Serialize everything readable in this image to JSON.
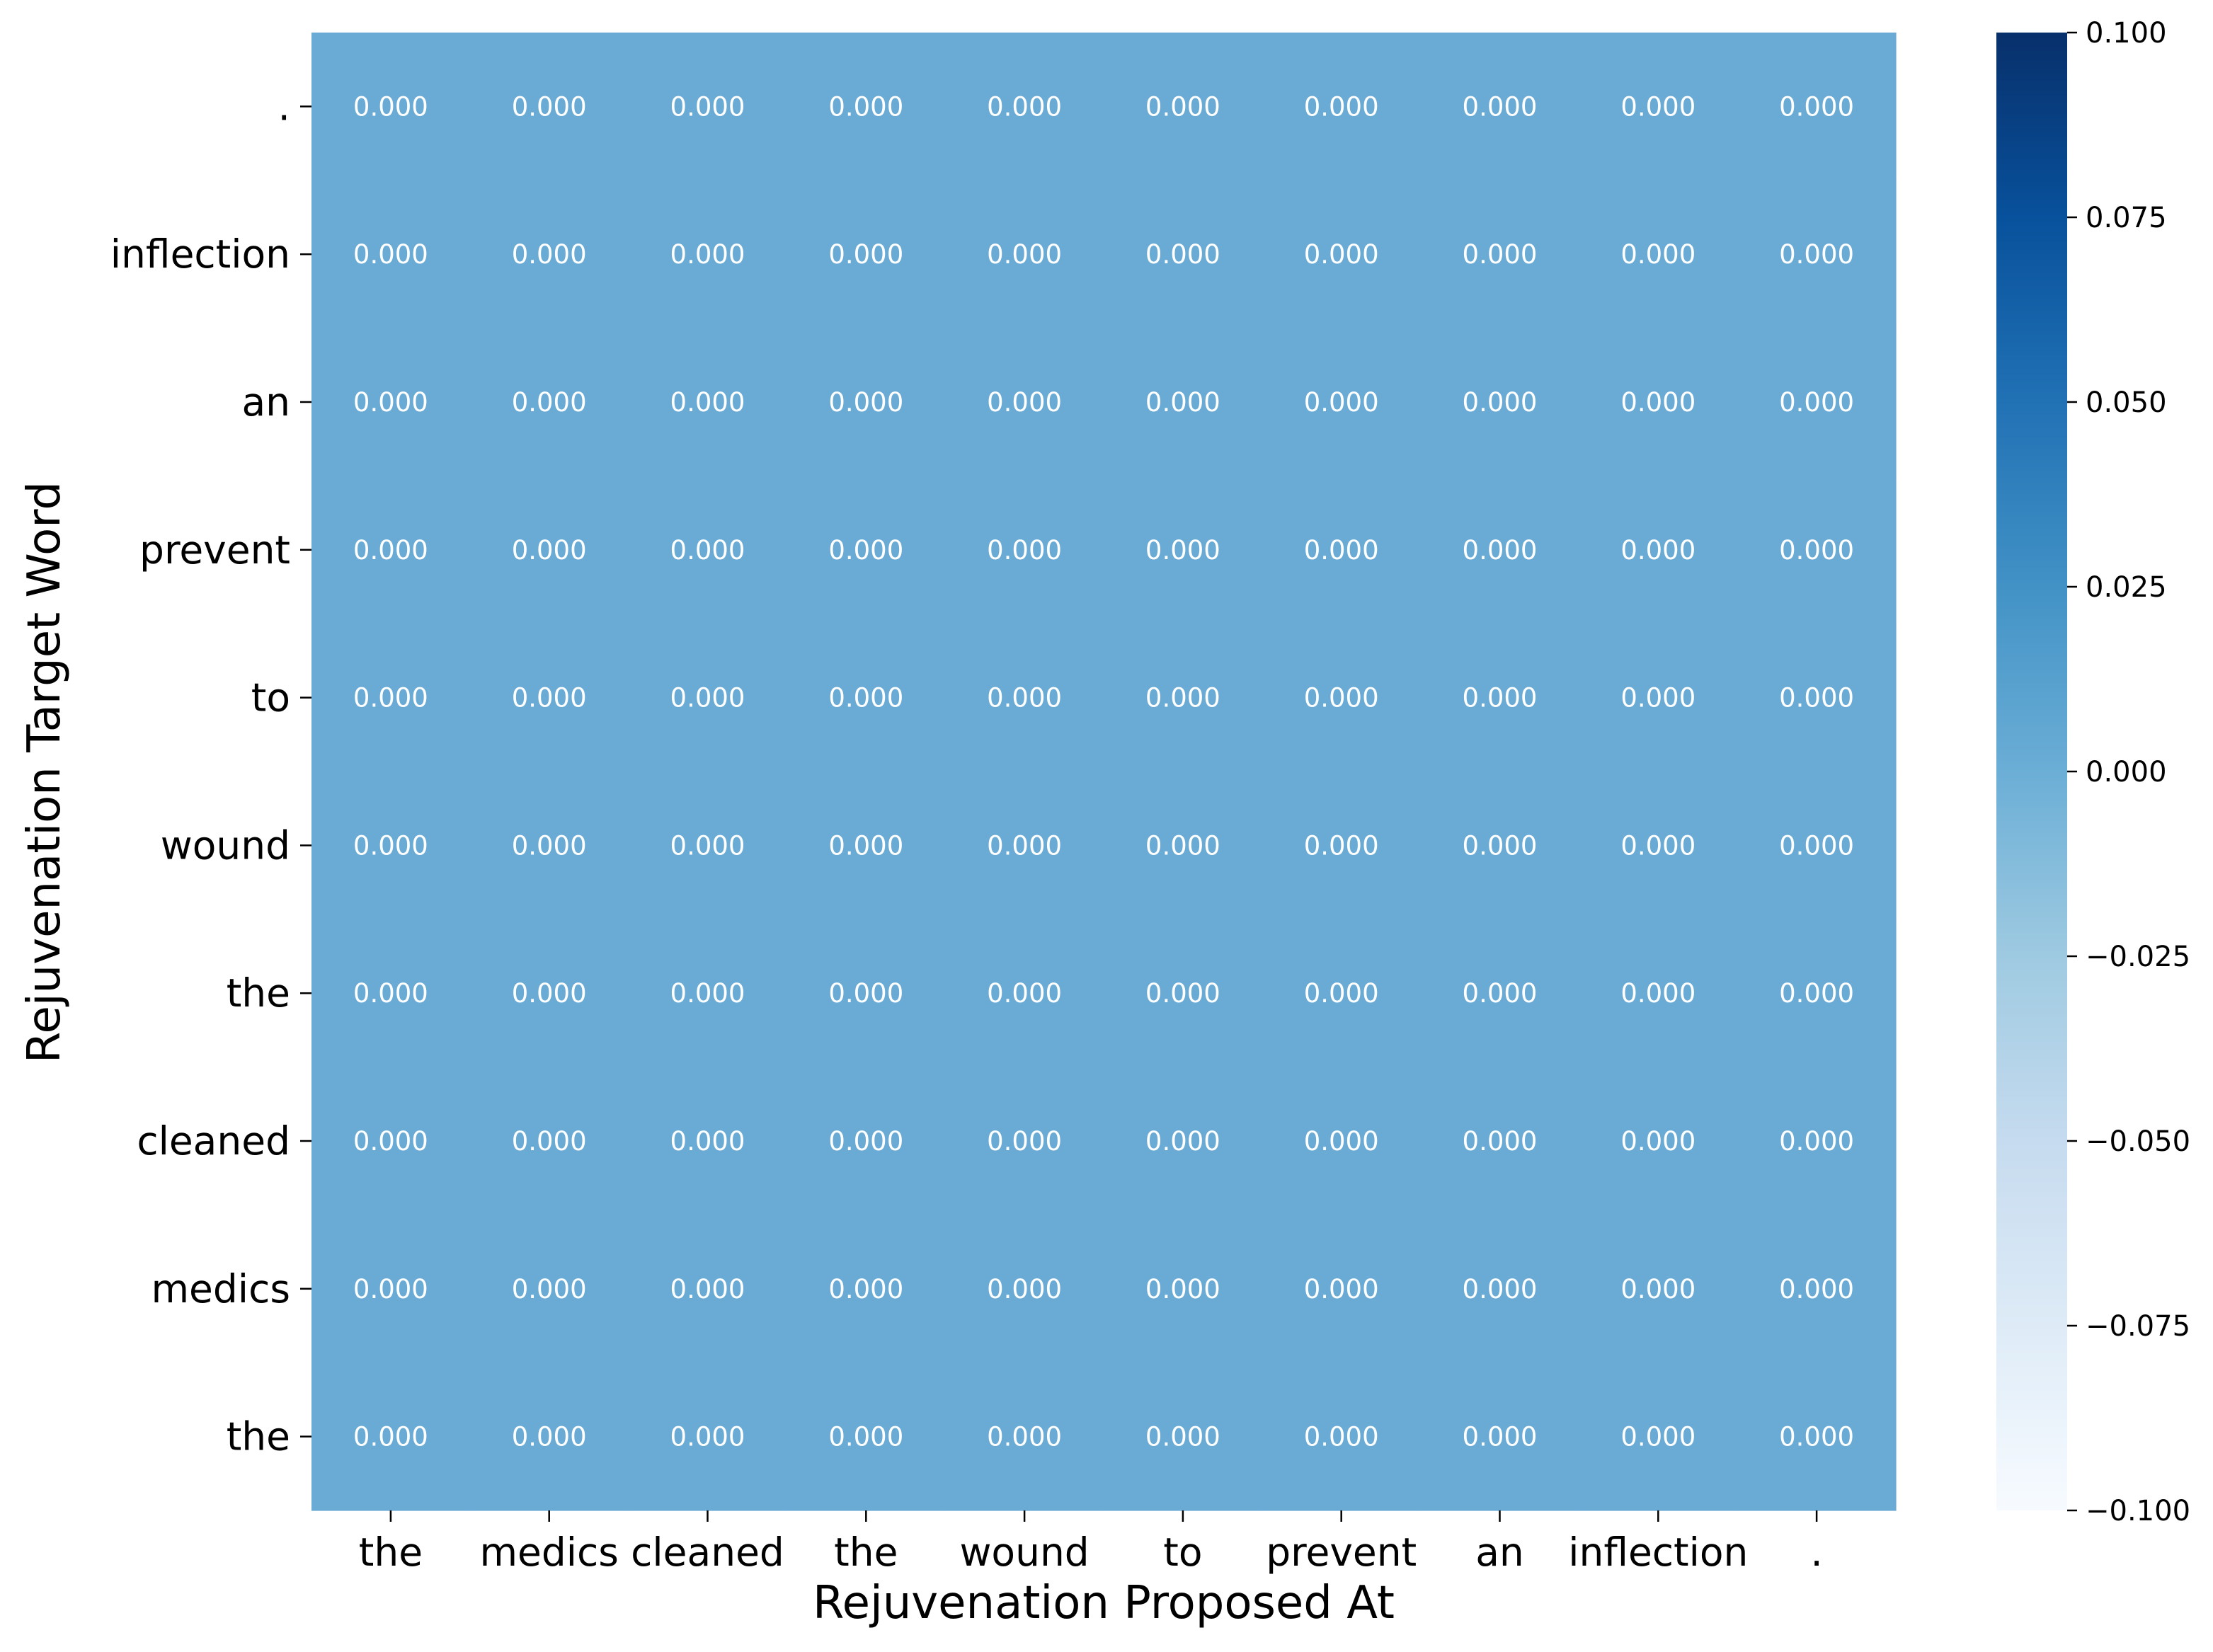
{
  "chart_data": {
    "type": "heatmap",
    "title": "",
    "xlabel": "Rejuvenation Proposed At",
    "ylabel": "Rejuvenation Target Word",
    "x_categories": [
      "the",
      "medics",
      "cleaned",
      "the",
      "wound",
      "to",
      "prevent",
      "an",
      "inflection",
      "."
    ],
    "y_categories": [
      ".",
      "inflection",
      "an",
      "prevent",
      "to",
      "wound",
      "the",
      "cleaned",
      "medics",
      "the"
    ],
    "values": [
      [
        0,
        0,
        0,
        0,
        0,
        0,
        0,
        0,
        0,
        0
      ],
      [
        0,
        0,
        0,
        0,
        0,
        0,
        0,
        0,
        0,
        0
      ],
      [
        0,
        0,
        0,
        0,
        0,
        0,
        0,
        0,
        0,
        0
      ],
      [
        0,
        0,
        0,
        0,
        0,
        0,
        0,
        0,
        0,
        0
      ],
      [
        0,
        0,
        0,
        0,
        0,
        0,
        0,
        0,
        0,
        0
      ],
      [
        0,
        0,
        0,
        0,
        0,
        0,
        0,
        0,
        0,
        0
      ],
      [
        0,
        0,
        0,
        0,
        0,
        0,
        0,
        0,
        0,
        0
      ],
      [
        0,
        0,
        0,
        0,
        0,
        0,
        0,
        0,
        0,
        0
      ],
      [
        0,
        0,
        0,
        0,
        0,
        0,
        0,
        0,
        0,
        0
      ],
      [
        0,
        0,
        0,
        0,
        0,
        0,
        0,
        0,
        0,
        0
      ]
    ],
    "value_format_decimals": 3,
    "colormap": "Blues",
    "vmin": -0.1,
    "vmax": 0.1,
    "colorbar_ticks": [
      0.1,
      0.075,
      0.05,
      0.025,
      0.0,
      -0.025,
      -0.05,
      -0.075,
      -0.1
    ],
    "colorbar_tick_labels": [
      "0.100",
      "0.075",
      "0.050",
      "0.025",
      "0.000",
      "−0.025",
      "−0.050",
      "−0.075",
      "−0.100"
    ],
    "cell_color": "#6aabd6",
    "annotation_color": "#ffffff"
  }
}
